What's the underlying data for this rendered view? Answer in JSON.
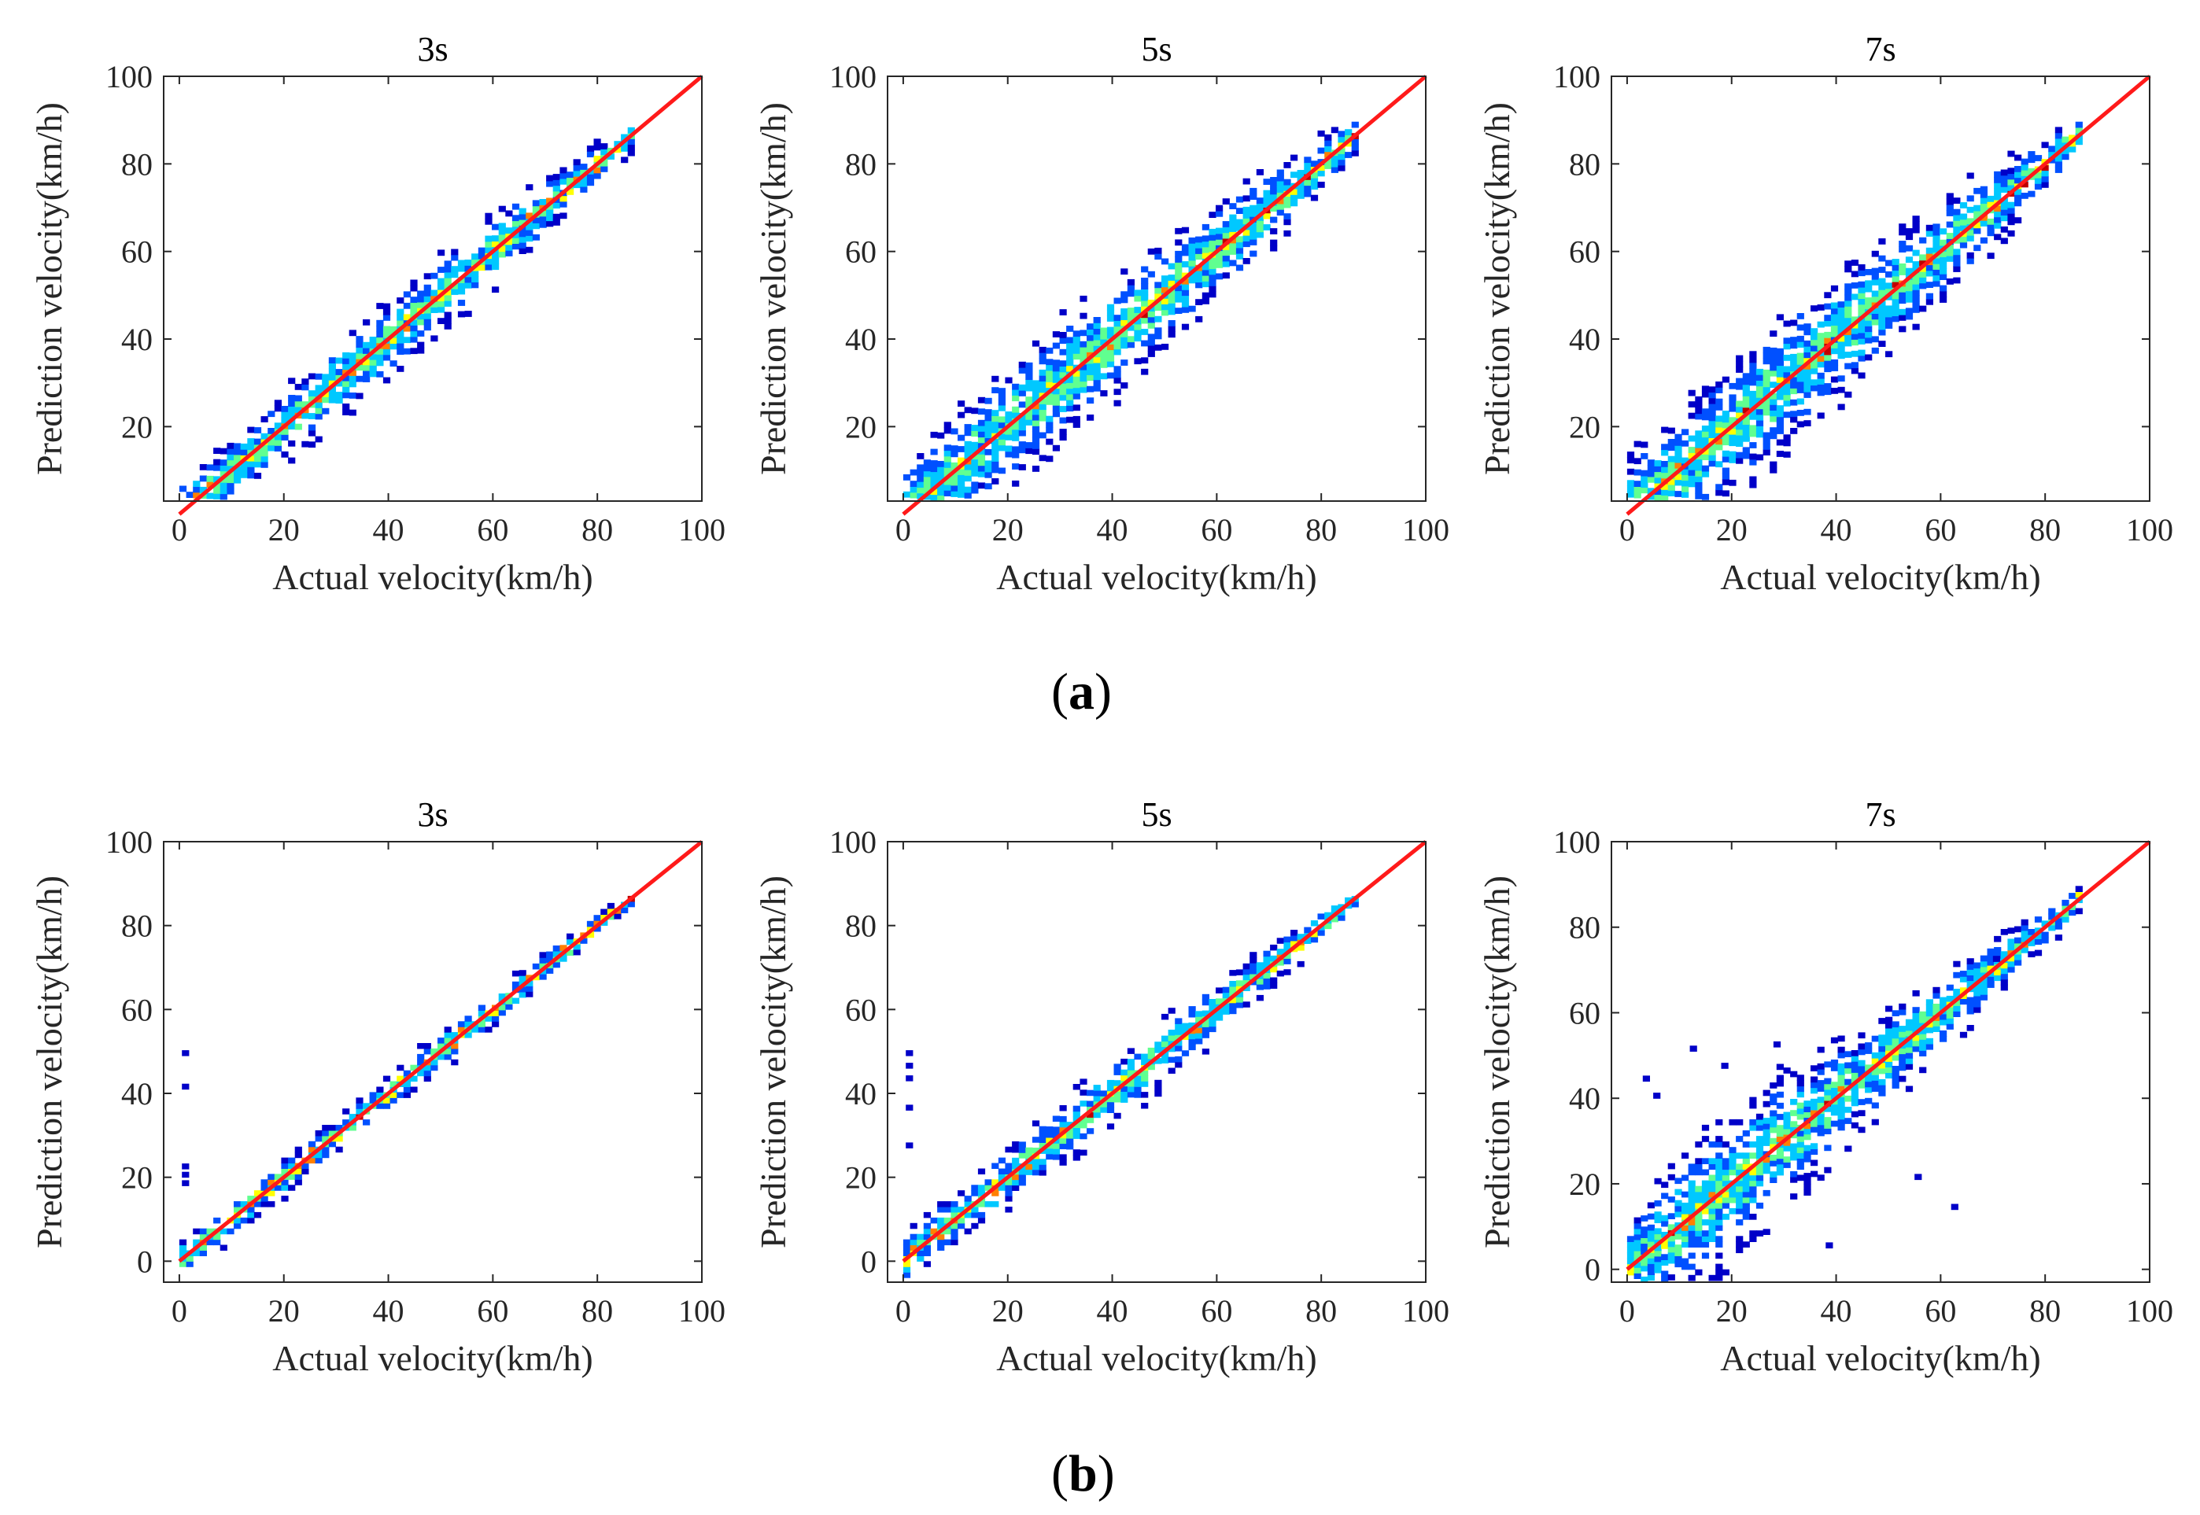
{
  "figure": {
    "panel_a_letter": "a",
    "panel_b_letter": "b",
    "colors": {
      "identity_line": "#ff1a1a",
      "colormap": [
        "#0000c8",
        "#0050ff",
        "#00c8ff",
        "#60ff90",
        "#ffff00",
        "#ff8000",
        "#c00000"
      ]
    }
  },
  "chart_data": [
    {
      "type": "heatmap",
      "panel": "a",
      "title": "3s",
      "xlabel": "Actual velocity(km/h)",
      "ylabel": "Prediction velocity(km/h)",
      "xlim": [
        -3,
        100
      ],
      "ylim": [
        3,
        100
      ],
      "xticks": [
        0,
        20,
        40,
        60,
        80,
        100
      ],
      "yticks": [
        20,
        40,
        60,
        80,
        100
      ],
      "line": {
        "from": [
          0,
          0
        ],
        "to": [
          100,
          100
        ]
      },
      "spread": {
        "anchors": [
          0,
          40,
          60,
          86
        ],
        "widths": [
          6,
          8,
          7,
          3
        ]
      },
      "max_x": 87,
      "outliers": []
    },
    {
      "type": "heatmap",
      "panel": "a",
      "title": "5s",
      "xlabel": "Actual velocity(km/h)",
      "ylabel": "Prediction velocity(km/h)",
      "xlim": [
        -3,
        100
      ],
      "ylim": [
        3,
        100
      ],
      "xticks": [
        0,
        20,
        40,
        60,
        80,
        100
      ],
      "yticks": [
        20,
        40,
        60,
        80,
        100
      ],
      "line": {
        "from": [
          0,
          0
        ],
        "to": [
          100,
          100
        ]
      },
      "spread": {
        "anchors": [
          0,
          30,
          50,
          65,
          86
        ],
        "widths": [
          10,
          13,
          11,
          9,
          4
        ]
      },
      "max_x": 87,
      "outliers": []
    },
    {
      "type": "heatmap",
      "panel": "a",
      "title": "7s",
      "xlabel": "Actual velocity(km/h)",
      "ylabel": "Prediction velocity(km/h)",
      "xlim": [
        -3,
        100
      ],
      "ylim": [
        3,
        100
      ],
      "xticks": [
        0,
        20,
        40,
        60,
        80,
        100
      ],
      "yticks": [
        20,
        40,
        60,
        80,
        100
      ],
      "line": {
        "from": [
          0,
          0
        ],
        "to": [
          100,
          100
        ]
      },
      "spread": {
        "anchors": [
          0,
          30,
          45,
          65,
          86
        ],
        "widths": [
          11,
          14,
          12,
          9,
          4
        ]
      },
      "max_x": 87,
      "outliers": []
    },
    {
      "type": "heatmap",
      "panel": "b",
      "title": "3s",
      "xlabel": "Actual velocity(km/h)",
      "ylabel": "Prediction velocity(km/h)",
      "xlim": [
        -3,
        100
      ],
      "ylim": [
        -5,
        100
      ],
      "xticks": [
        0,
        20,
        40,
        60,
        80,
        100
      ],
      "yticks": [
        0,
        20,
        40,
        60,
        80,
        100
      ],
      "line": {
        "from": [
          0,
          0
        ],
        "to": [
          100,
          100
        ]
      },
      "spread": {
        "anchors": [
          0,
          30,
          60,
          86
        ],
        "widths": [
          4,
          4,
          4,
          2
        ]
      },
      "max_x": 87,
      "outliers": [
        [
          0.5,
          49
        ],
        [
          0.5,
          41
        ],
        [
          0.5,
          22
        ],
        [
          0.5,
          20
        ],
        [
          0.5,
          18
        ]
      ]
    },
    {
      "type": "heatmap",
      "panel": "b",
      "title": "5s",
      "xlabel": "Actual velocity(km/h)",
      "ylabel": "Prediction velocity(km/h)",
      "xlim": [
        -3,
        100
      ],
      "ylim": [
        -5,
        100
      ],
      "xticks": [
        0,
        20,
        40,
        60,
        80,
        100
      ],
      "yticks": [
        0,
        20,
        40,
        60,
        80,
        100
      ],
      "line": {
        "from": [
          0,
          0
        ],
        "to": [
          100,
          100
        ]
      },
      "spread": {
        "anchors": [
          0,
          20,
          45,
          70,
          86
        ],
        "widths": [
          6,
          6,
          7,
          5,
          2
        ]
      },
      "max_x": 87,
      "outliers": [
        [
          0.5,
          49
        ],
        [
          0.5,
          46
        ],
        [
          0.5,
          43
        ],
        [
          0.5,
          36
        ],
        [
          0.5,
          27
        ]
      ]
    },
    {
      "type": "heatmap",
      "panel": "b",
      "title": "7s",
      "xlabel": "Actual velocity(km/h)",
      "ylabel": "Prediction velocity(km/h)",
      "xlim": [
        -3,
        100
      ],
      "ylim": [
        -3,
        100
      ],
      "xticks": [
        0,
        20,
        40,
        60,
        80,
        100
      ],
      "yticks": [
        0,
        20,
        40,
        60,
        80,
        100
      ],
      "line": {
        "from": [
          0,
          0
        ],
        "to": [
          100,
          100
        ]
      },
      "spread": {
        "anchors": [
          0,
          10,
          25,
          40,
          60,
          86
        ],
        "widths": [
          10,
          15,
          15,
          11,
          8,
          3
        ]
      },
      "max_x": 87,
      "outliers": [
        [
          3,
          44
        ],
        [
          5,
          40
        ],
        [
          12,
          51
        ],
        [
          18,
          47
        ],
        [
          28,
          52
        ],
        [
          38,
          5
        ],
        [
          55,
          21
        ],
        [
          62,
          14
        ],
        [
          70,
          72
        ]
      ]
    }
  ]
}
